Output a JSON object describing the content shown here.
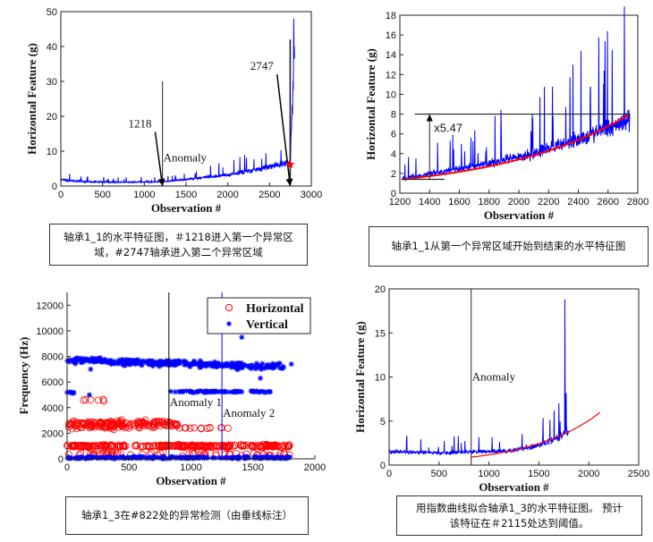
{
  "captions": [
    "轴承1_1的水平特征图，＃1218进入第一个异常区域，#2747轴承进入第二个异常区域",
    "轴承1_1从第一个异常区域开始到结束的水平特征图",
    "轴承1_3在#822处的异常检测（由垂线标注）",
    "用指数曲线拟合轴承1_3的水平特征图。 预计该特征在＃2115处达到阈值。"
  ],
  "chart_data": [
    {
      "type": "line",
      "xlabel": "Observation #",
      "ylabel": "Horizontal Feature (g)",
      "xlim": [
        0,
        3000
      ],
      "ylim": [
        0,
        50
      ],
      "xticks": [
        0,
        500,
        1000,
        1500,
        2000,
        2500,
        3000
      ],
      "yticks": [
        0,
        10,
        20,
        30,
        40,
        50
      ],
      "series_color": "#0000ff",
      "series_trend": {
        "x": [
          0,
          300,
          800,
          1218,
          1500,
          2000,
          2500,
          2700,
          2747,
          2760,
          2800
        ],
        "y": [
          1.8,
          1.2,
          1.1,
          1.2,
          1.9,
          3.2,
          5.5,
          6.5,
          7,
          15,
          40
        ]
      },
      "peak_value": 48,
      "vlines": [
        {
          "x": 1218,
          "ymax": 30,
          "label": "Anomaly"
        },
        {
          "x": 2747,
          "ymax": 42
        }
      ],
      "arrows": [
        {
          "label": "1218",
          "from": [
            1130,
            15.5
          ],
          "to": [
            1218,
            0
          ]
        },
        {
          "label": "2747",
          "from": [
            2590,
            32
          ],
          "to": [
            2747,
            0
          ]
        }
      ],
      "marker": {
        "x": 2747,
        "y": 6.2,
        "shape": "star",
        "color": "#ff0000"
      }
    },
    {
      "type": "line",
      "xlabel": "Observation #",
      "ylabel": "Horizontal Feature (g)",
      "xlim": [
        1200,
        2800
      ],
      "ylim": [
        0,
        18
      ],
      "xticks": [
        1200,
        1400,
        1600,
        1800,
        2000,
        2200,
        2400,
        2600,
        2800
      ],
      "yticks": [
        0,
        2,
        4,
        6,
        8,
        10,
        12,
        14,
        16,
        18
      ],
      "series_color": "#0000ff",
      "series_trend": {
        "x": [
          1218,
          1500,
          2000,
          2300,
          2500,
          2747
        ],
        "y": [
          1.5,
          2.2,
          3.6,
          5,
          6,
          7.5
        ]
      },
      "peak_value": 16.4,
      "fit": {
        "color": "#ff0000",
        "x_start": 1218,
        "y_start": 1.4,
        "x_end": 2747,
        "y_end": 8
      },
      "hlines": [
        {
          "y": 8,
          "x": [
            1300,
            2750
          ]
        },
        {
          "y": 1.4,
          "x": [
            1210,
            1500
          ]
        }
      ],
      "arrow": {
        "x": 1400,
        "from": 1.4,
        "to": 8,
        "label": "x5.47"
      }
    },
    {
      "type": "scatter",
      "xlabel": "Observation #",
      "ylabel": "Frequency (Hz)",
      "xlim": [
        0,
        2000
      ],
      "ylim": [
        0,
        13000
      ],
      "xticks": [
        0,
        500,
        1000,
        1500,
        2000
      ],
      "yticks": [
        0,
        2000,
        4000,
        6000,
        8000,
        10000,
        12000
      ],
      "legend": {
        "position": "top-right",
        "entries": [
          {
            "name": "Horizontal",
            "color": "#ff0000",
            "marker": "circle"
          },
          {
            "name": "Vertical",
            "color": "#0000ff",
            "marker": "star"
          }
        ]
      },
      "series": [
        {
          "name": "Horizontal",
          "bands": [
            {
              "x": [
                0,
                1800
              ],
              "y": 1000,
              "spread": 150,
              "n": 260
            },
            {
              "x": [
                0,
                900
              ],
              "y": 2700,
              "spread": 450,
              "n": 170
            },
            {
              "x": [
                850,
                1300
              ],
              "y": 2400,
              "spread": 80,
              "n": 14
            },
            {
              "x": [
                0,
                1800
              ],
              "y": 350,
              "spread": 250,
              "n": 60
            },
            {
              "x": [
                0,
                400
              ],
              "y": 4600,
              "spread": 200,
              "n": 6
            }
          ]
        },
        {
          "name": "Vertical",
          "bands": [
            {
              "x": [
                0,
                1750
              ],
              "y": 7700,
              "y_end": 7200,
              "spread": 350,
              "n": 320
            },
            {
              "x": [
                830,
                1700
              ],
              "y": 5250,
              "spread": 100,
              "n": 70
            },
            {
              "x": [
                0,
                1800
              ],
              "y": 100,
              "spread": 120,
              "n": 230
            },
            {
              "x": [
                0,
                60
              ],
              "y": 5200,
              "spread": 200,
              "n": 8
            }
          ]
        }
      ],
      "outliers_vertical": [
        [
          1410,
          9500
        ],
        [
          1560,
          6300
        ],
        [
          1810,
          7400
        ],
        [
          190,
          7000
        ],
        [
          180,
          5000
        ]
      ],
      "vlines": [
        {
          "x": 822,
          "label": "Anomaly 1",
          "color": "#000000"
        },
        {
          "x": 1250,
          "label": "Anomaly 2",
          "color": "#0000ff"
        }
      ]
    },
    {
      "type": "line",
      "xlabel": "Observation #",
      "ylabel": "Horizontal Feature (g)",
      "xlim": [
        0,
        2500
      ],
      "ylim": [
        0,
        20
      ],
      "xticks": [
        0,
        500,
        1000,
        1500,
        2000,
        2500
      ],
      "yticks": [
        0,
        5,
        10,
        15,
        20
      ],
      "series_color": "#0000ff",
      "series_trend": {
        "x": [
          0,
          500,
          822,
          1200,
          1500,
          1700,
          1800
        ],
        "y": [
          1.5,
          1.4,
          1.5,
          1.6,
          2.2,
          3.2,
          4
        ]
      },
      "peak_value": 18.8,
      "vlines": [
        {
          "x": 822,
          "label": "Anomaly"
        }
      ],
      "fit": {
        "color": "#ff0000",
        "x_start": 822,
        "y_start": 0.9,
        "x_end": 2115,
        "y_end": 6
      }
    }
  ]
}
